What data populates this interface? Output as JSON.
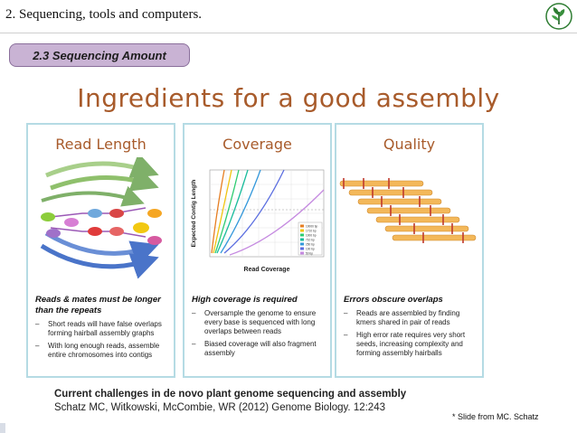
{
  "header": {
    "title": "2. Sequencing, tools and computers.",
    "section": "2.3 Sequencing Amount"
  },
  "slide": {
    "title": "Ingredients for a good assembly"
  },
  "panels": [
    {
      "title": "Read Length",
      "heading": "Reads & mates must be longer than the repeats",
      "bullets": [
        "Short reads will have false overlaps forming hairball assembly graphs",
        "With long enough reads, assemble entire chromosomes into contigs"
      ]
    },
    {
      "title": "Coverage",
      "heading": "High coverage is required",
      "bullets": [
        "Oversample the genome to ensure every base is sequenced with long overlaps between reads",
        "Biased coverage will also fragment assembly"
      ],
      "chart": {
        "ylabel": "Expected Contig Length",
        "xlabel": "Read Coverage",
        "legend": [
          "10000 bp",
          "1710 bp",
          "1000 bp",
          "710 bp",
          "250 bp",
          "100 bp",
          "50 bp"
        ]
      }
    },
    {
      "title": "Quality",
      "heading": "Errors obscure overlaps",
      "bullets": [
        "Reads are assembled by finding kmers shared in pair of reads",
        "High error rate requires very short seeds, increasing complexity and forming assembly hairballs"
      ]
    }
  ],
  "citation": {
    "line1": "Current challenges in de novo plant genome sequencing and assembly",
    "line2": "Schatz MC, Witkowski, McCombie, WR (2012) Genome Biology. 12:243"
  },
  "footnote": "* Slide from MC. Schatz",
  "colors": {
    "accent": "#a85b2b",
    "panel_border": "#b5dbe4",
    "pill": "#c9b3d4"
  }
}
